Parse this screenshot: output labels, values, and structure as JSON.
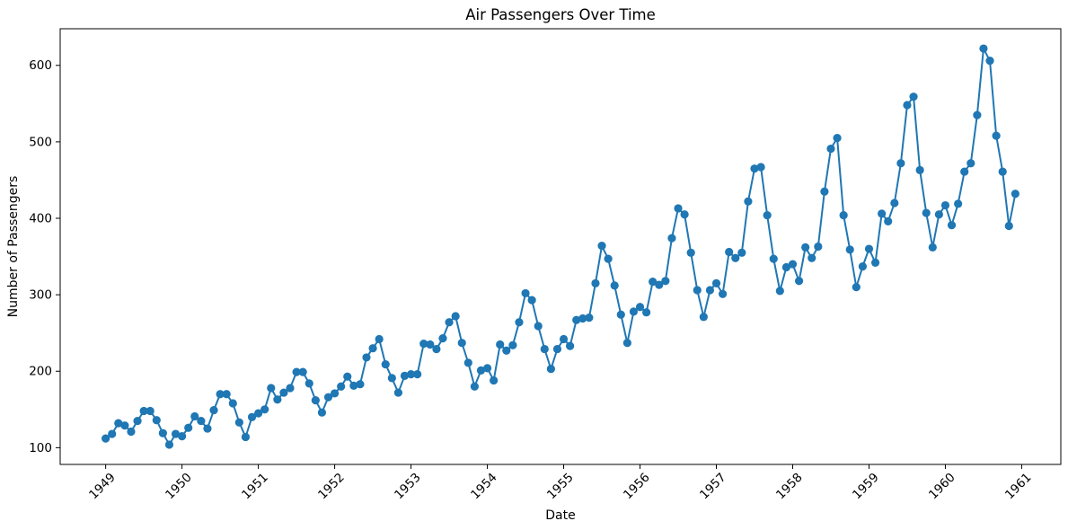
{
  "chart": {
    "title": "Air Passengers Over Time",
    "xlabel": "Date",
    "ylabel": "Number of Passengers"
  },
  "chart_data": {
    "type": "line",
    "title": "Air Passengers Over Time",
    "xlabel": "Date",
    "ylabel": "Number of Passengers",
    "legend": "none",
    "grid": false,
    "line_color": "#1f77b4",
    "marker": "circle-filled",
    "x_unit": "month",
    "x_start": "1949-01",
    "x_end": "1960-12",
    "x_tick_labels": [
      "1949",
      "1950",
      "1951",
      "1952",
      "1953",
      "1954",
      "1955",
      "1956",
      "1957",
      "1958",
      "1959",
      "1960",
      "1961"
    ],
    "x_tick_month_index": [
      0,
      12,
      24,
      36,
      48,
      60,
      72,
      84,
      96,
      108,
      120,
      132,
      144
    ],
    "y_ticks": [
      100,
      200,
      300,
      400,
      500,
      600
    ],
    "y_tick_labels": [
      "100",
      "200",
      "300",
      "400",
      "500",
      "600"
    ],
    "ylim_data": [
      104,
      622
    ],
    "axes_margin_fraction": 0.05,
    "series": [
      {
        "name": "AirPassengers",
        "values": [
          112,
          118,
          132,
          129,
          121,
          135,
          148,
          148,
          136,
          119,
          104,
          118,
          115,
          126,
          141,
          135,
          125,
          149,
          170,
          170,
          158,
          133,
          114,
          140,
          145,
          150,
          178,
          163,
          172,
          178,
          199,
          199,
          184,
          162,
          146,
          166,
          171,
          180,
          193,
          181,
          183,
          218,
          230,
          242,
          209,
          191,
          172,
          194,
          196,
          196,
          236,
          235,
          229,
          243,
          264,
          272,
          237,
          211,
          180,
          201,
          204,
          188,
          235,
          227,
          234,
          264,
          302,
          293,
          259,
          229,
          203,
          229,
          242,
          233,
          267,
          269,
          270,
          315,
          364,
          347,
          312,
          274,
          237,
          278,
          284,
          277,
          317,
          313,
          318,
          374,
          413,
          405,
          355,
          306,
          271,
          306,
          315,
          301,
          356,
          348,
          355,
          422,
          465,
          467,
          404,
          347,
          305,
          336,
          340,
          318,
          362,
          348,
          363,
          435,
          491,
          505,
          404,
          359,
          310,
          337,
          360,
          342,
          406,
          396,
          420,
          472,
          548,
          559,
          463,
          407,
          362,
          405,
          417,
          391,
          419,
          461,
          472,
          535,
          622,
          606,
          508,
          461,
          390,
          432
        ]
      }
    ]
  }
}
